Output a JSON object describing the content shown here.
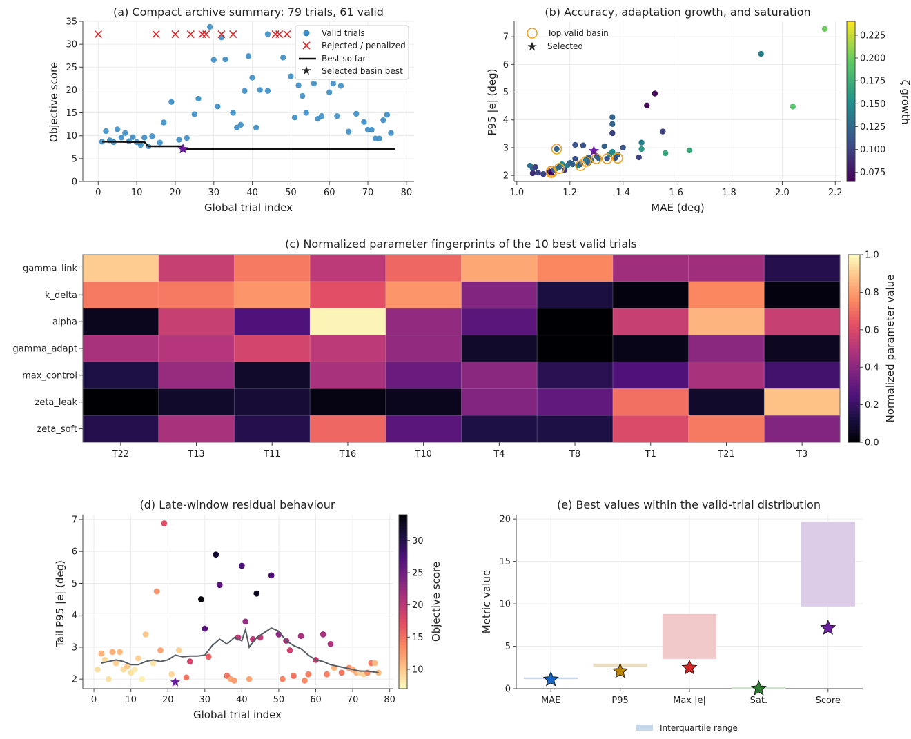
{
  "chart_data": [
    {
      "id": "a",
      "type": "scatter",
      "title": "(a) Compact archive summary: 79 trials, 61 valid",
      "xlabel": "Global trial index",
      "ylabel": "Objective score",
      "xlim": [
        -4,
        82
      ],
      "ylim": [
        0,
        35
      ],
      "xticks": [
        0,
        10,
        20,
        30,
        40,
        50,
        60,
        70,
        80
      ],
      "yticks": [
        0,
        5,
        10,
        15,
        20,
        25,
        30,
        35
      ],
      "grid": true,
      "legend_position": "top-right",
      "legend": [
        "Valid trials",
        "Rejected / penalized",
        "Best so far",
        "Selected basin best"
      ],
      "colors": {
        "valid": "#3a8cc4",
        "rejected": "#d62728",
        "best": "#111111",
        "selected": "#6a1fa0"
      },
      "valid_points": [
        [
          1,
          8.7
        ],
        [
          2,
          11
        ],
        [
          3,
          9
        ],
        [
          4,
          8.6
        ],
        [
          5,
          11.4
        ],
        [
          6,
          9.6
        ],
        [
          7,
          10.6
        ],
        [
          8,
          8.8
        ],
        [
          9,
          9.7
        ],
        [
          10,
          8.6
        ],
        [
          11,
          8
        ],
        [
          12,
          9.6
        ],
        [
          13,
          7.7
        ],
        [
          14,
          9.9
        ],
        [
          16,
          8.5
        ],
        [
          17,
          12.9
        ],
        [
          19,
          17.4
        ],
        [
          21,
          9.1
        ],
        [
          23,
          9.5
        ],
        [
          25,
          14.7
        ],
        [
          26,
          18.1
        ],
        [
          29,
          33.8
        ],
        [
          30,
          26.6
        ],
        [
          31,
          16.4
        ],
        [
          32,
          31.5
        ],
        [
          33,
          26.7
        ],
        [
          35,
          15
        ],
        [
          36,
          11.8
        ],
        [
          37,
          12.4
        ],
        [
          38,
          19.8
        ],
        [
          39,
          27.4
        ],
        [
          40,
          22.7
        ],
        [
          41,
          11.8
        ],
        [
          42,
          20
        ],
        [
          44,
          32.2
        ],
        [
          44,
          19.8
        ],
        [
          48,
          27.1
        ],
        [
          50,
          23
        ],
        [
          51,
          14
        ],
        [
          52,
          21
        ],
        [
          53,
          18.7
        ],
        [
          54,
          15
        ],
        [
          55,
          31.7
        ],
        [
          56,
          21.4
        ],
        [
          57,
          13.7
        ],
        [
          58,
          14.3
        ],
        [
          59,
          25
        ],
        [
          60,
          19.5
        ],
        [
          61,
          21.4
        ],
        [
          62,
          14.3
        ],
        [
          63,
          20.9
        ],
        [
          65,
          10.9
        ],
        [
          67,
          14.8
        ],
        [
          69,
          13
        ],
        [
          70,
          11.3
        ],
        [
          71,
          11.3
        ],
        [
          72,
          9.4
        ],
        [
          73,
          9.4
        ],
        [
          74,
          13.4
        ],
        [
          75,
          14.6
        ],
        [
          76,
          10.6
        ]
      ],
      "rejected_points": [
        [
          0,
          32.2
        ],
        [
          15,
          32.2
        ],
        [
          20,
          32.2
        ],
        [
          24,
          32.2
        ],
        [
          27,
          32.2
        ],
        [
          28,
          32.2
        ],
        [
          32,
          32.2
        ],
        [
          35,
          32.2
        ],
        [
          46,
          32.2
        ],
        [
          47,
          32.2
        ],
        [
          49,
          32.2
        ],
        [
          78,
          32.2
        ]
      ],
      "best_so_far": [
        [
          1,
          8.7
        ],
        [
          12,
          8.6
        ],
        [
          13,
          7.7
        ],
        [
          22,
          7.7
        ],
        [
          22,
          7.1
        ],
        [
          77,
          7.1
        ]
      ],
      "selected": [
        22,
        7.1
      ]
    },
    {
      "id": "b",
      "type": "scatter",
      "title": "(b) Accuracy, adaptation growth, and saturation",
      "xlabel": "MAE (deg)",
      "ylabel": "P95 |e| (deg)",
      "xlim": [
        0.99,
        2.22
      ],
      "ylim": [
        1.78,
        7.55
      ],
      "xticks": [
        1.0,
        1.2,
        1.4,
        1.6,
        1.8,
        2.0,
        2.2
      ],
      "yticks": [
        2,
        3,
        4,
        5,
        6,
        7
      ],
      "grid": true,
      "colorbar_label": "ζ growth",
      "colorbar_range": [
        0.065,
        0.24
      ],
      "colorbar_ticks": [
        0.075,
        0.1,
        0.125,
        0.15,
        0.175,
        0.2,
        0.225
      ],
      "legend_position": "top-left",
      "legend": [
        "Top valid basin",
        "Selected"
      ],
      "points": [
        [
          1.05,
          2.35,
          0.13
        ],
        [
          1.06,
          2.25,
          0.12
        ],
        [
          1.07,
          2.3,
          0.1
        ],
        [
          1.06,
          2.08,
          0.09
        ],
        [
          1.08,
          2.1,
          0.1
        ],
        [
          1.1,
          2.05,
          0.1
        ],
        [
          1.12,
          2.15,
          0.09
        ],
        [
          1.13,
          2.1,
          0.07
        ],
        [
          1.14,
          2.2,
          0.12
        ],
        [
          1.15,
          2.25,
          0.15
        ],
        [
          1.16,
          2.3,
          0.12
        ],
        [
          1.15,
          2.95,
          0.12
        ],
        [
          1.17,
          2.4,
          0.15
        ],
        [
          1.18,
          2.2,
          0.1
        ],
        [
          1.19,
          2.35,
          0.14
        ],
        [
          1.2,
          2.45,
          0.12
        ],
        [
          1.21,
          2.4,
          0.12
        ],
        [
          1.22,
          2.6,
          0.11
        ],
        [
          1.22,
          3.1,
          0.11
        ],
        [
          1.23,
          2.35,
          0.15
        ],
        [
          1.24,
          2.4,
          0.12
        ],
        [
          1.25,
          3.08,
          0.11
        ],
        [
          1.26,
          2.55,
          0.14
        ],
        [
          1.27,
          2.45,
          0.12
        ],
        [
          1.27,
          2.65,
          0.12
        ],
        [
          1.28,
          2.55,
          0.12
        ],
        [
          1.3,
          2.7,
          0.12
        ],
        [
          1.31,
          2.6,
          0.12
        ],
        [
          1.33,
          3.05,
          0.12
        ],
        [
          1.34,
          2.6,
          0.11
        ],
        [
          1.35,
          2.75,
          0.14
        ],
        [
          1.36,
          2.85,
          0.15
        ],
        [
          1.36,
          4.1,
          0.12
        ],
        [
          1.36,
          3.85,
          0.12
        ],
        [
          1.36,
          3.52,
          0.1
        ],
        [
          1.37,
          2.62,
          0.11
        ],
        [
          1.38,
          2.75,
          0.12
        ],
        [
          1.4,
          3.0,
          0.11
        ],
        [
          1.46,
          2.65,
          0.1
        ],
        [
          1.47,
          2.95,
          0.16
        ],
        [
          1.47,
          3.18,
          0.14
        ],
        [
          1.49,
          4.52,
          0.07
        ],
        [
          1.52,
          4.95,
          0.07
        ],
        [
          1.55,
          3.58,
          0.1
        ],
        [
          1.56,
          2.8,
          0.17
        ],
        [
          1.65,
          2.9,
          0.17
        ],
        [
          1.92,
          6.38,
          0.14
        ],
        [
          2.04,
          4.48,
          0.19
        ],
        [
          2.16,
          7.28,
          0.2
        ]
      ],
      "top_basin": [
        [
          1.13,
          2.15
        ],
        [
          1.13,
          2.1
        ],
        [
          1.15,
          2.95
        ],
        [
          1.16,
          2.25
        ],
        [
          1.24,
          2.35
        ],
        [
          1.26,
          2.5
        ],
        [
          1.3,
          2.6
        ],
        [
          1.34,
          2.6
        ],
        [
          1.38,
          2.62
        ]
      ],
      "selected": [
        1.29,
        2.88
      ]
    },
    {
      "id": "c",
      "type": "heatmap",
      "title": "(c) Normalized parameter fingerprints of the 10 best valid trials",
      "rows": [
        "gamma_link",
        "k_delta",
        "alpha",
        "gamma_adapt",
        "max_control",
        "zeta_leak",
        "zeta_soft"
      ],
      "columns": [
        "T22",
        "T13",
        "T11",
        "T16",
        "T10",
        "T4",
        "T8",
        "T1",
        "T21",
        "T3"
      ],
      "colorbar_label": "Normalized parameter value",
      "colorbar_range": [
        0,
        1
      ],
      "colorbar_ticks": [
        0.0,
        0.2,
        0.4,
        0.6,
        0.8,
        1.0
      ],
      "values": [
        [
          0.9,
          0.55,
          0.72,
          0.52,
          0.68,
          0.82,
          0.75,
          0.45,
          0.45,
          0.15
        ],
        [
          0.72,
          0.72,
          0.78,
          0.62,
          0.78,
          0.38,
          0.12,
          0.02,
          0.75,
          0.02
        ],
        [
          0.05,
          0.55,
          0.25,
          0.98,
          0.42,
          0.28,
          0.0,
          0.55,
          0.85,
          0.55
        ],
        [
          0.47,
          0.5,
          0.58,
          0.52,
          0.42,
          0.08,
          0.0,
          0.04,
          0.4,
          0.06
        ],
        [
          0.13,
          0.43,
          0.08,
          0.47,
          0.32,
          0.4,
          0.16,
          0.25,
          0.47,
          0.22
        ],
        [
          0.0,
          0.08,
          0.1,
          0.03,
          0.05,
          0.38,
          0.3,
          0.7,
          0.08,
          0.88
        ],
        [
          0.15,
          0.47,
          0.15,
          0.68,
          0.28,
          0.13,
          0.13,
          0.6,
          0.72,
          0.38
        ]
      ]
    },
    {
      "id": "d",
      "type": "scatter",
      "title": "(d) Late-window residual behaviour",
      "xlabel": "Global trial index",
      "ylabel": "Tail P95 |e| (deg)",
      "xlim": [
        -3,
        81
      ],
      "ylim": [
        1.7,
        7.15
      ],
      "xticks": [
        0,
        10,
        20,
        30,
        40,
        50,
        60,
        70,
        80
      ],
      "yticks": [
        2,
        3,
        4,
        5,
        6,
        7
      ],
      "grid": true,
      "colorbar_label": "Objective score",
      "colorbar_range": [
        7,
        34
      ],
      "colorbar_ticks": [
        10,
        15,
        20,
        25,
        30
      ],
      "points": [
        [
          1,
          2.3,
          8.7
        ],
        [
          2,
          2.8,
          11
        ],
        [
          3,
          2.6,
          9
        ],
        [
          4,
          2.0,
          8.6
        ],
        [
          5,
          2.85,
          11.4
        ],
        [
          6,
          2.5,
          9.6
        ],
        [
          7,
          2.85,
          10.6
        ],
        [
          8,
          2.3,
          8.8
        ],
        [
          9,
          2.4,
          9.7
        ],
        [
          10,
          2.2,
          8.6
        ],
        [
          11,
          2.3,
          8
        ],
        [
          12,
          2.65,
          9.6
        ],
        [
          13,
          2.0,
          7.7
        ],
        [
          14,
          3.4,
          9.9
        ],
        [
          16,
          2.5,
          8.5
        ],
        [
          17,
          4.75,
          12.9
        ],
        [
          18,
          2.9,
          12
        ],
        [
          19,
          6.88,
          17.4
        ],
        [
          21,
          2.15,
          9.1
        ],
        [
          23,
          2.9,
          9.5
        ],
        [
          25,
          2.05,
          14.7
        ],
        [
          26,
          2.55,
          18.1
        ],
        [
          29,
          4.5,
          33.8
        ],
        [
          30,
          3.58,
          26.6
        ],
        [
          31,
          2.7,
          16.4
        ],
        [
          33,
          5.9,
          31.5
        ],
        [
          34,
          4.95,
          26.7
        ],
        [
          36,
          2.1,
          15
        ],
        [
          37,
          2.0,
          11.8
        ],
        [
          38,
          1.95,
          12.4
        ],
        [
          39,
          3.3,
          19.8
        ],
        [
          40,
          5.55,
          27.4
        ],
        [
          41,
          3.8,
          22.7
        ],
        [
          42,
          2.0,
          11.8
        ],
        [
          43,
          3.25,
          20
        ],
        [
          44,
          4.68,
          32.2
        ],
        [
          45,
          3.3,
          19.8
        ],
        [
          48,
          5.25,
          27.1
        ],
        [
          50,
          3.4,
          23
        ],
        [
          51,
          2.0,
          14
        ],
        [
          52,
          3.2,
          21
        ],
        [
          53,
          2.9,
          18.7
        ],
        [
          54,
          2.1,
          15
        ],
        [
          56,
          3.35,
          21.4
        ],
        [
          57,
          1.95,
          13.7
        ],
        [
          58,
          2.15,
          14.3
        ],
        [
          60,
          2.6,
          19.5
        ],
        [
          62,
          3.4,
          21.4
        ],
        [
          63,
          2.15,
          14.3
        ],
        [
          64,
          3.1,
          20.9
        ],
        [
          65,
          2.35,
          10.9
        ],
        [
          67,
          2.2,
          14.8
        ],
        [
          69,
          2.35,
          13
        ],
        [
          70,
          2.3,
          11.3
        ],
        [
          71,
          2.2,
          11.3
        ],
        [
          72,
          2.2,
          9.4
        ],
        [
          73,
          2.15,
          9.4
        ],
        [
          74,
          2.2,
          13.4
        ],
        [
          75,
          2.5,
          14.6
        ],
        [
          76,
          2.5,
          10.6
        ],
        [
          77,
          2.2,
          10.6
        ]
      ],
      "rolling": [
        [
          2,
          2.5
        ],
        [
          4,
          2.55
        ],
        [
          6,
          2.6
        ],
        [
          8,
          2.55
        ],
        [
          10,
          2.45
        ],
        [
          12,
          2.45
        ],
        [
          14,
          2.55
        ],
        [
          16,
          2.6
        ],
        [
          18,
          2.55
        ],
        [
          20,
          2.6
        ],
        [
          22,
          2.75
        ],
        [
          24,
          2.7
        ],
        [
          26,
          2.72
        ],
        [
          28,
          2.72
        ],
        [
          30,
          2.75
        ],
        [
          32,
          3.05
        ],
        [
          34,
          3.25
        ],
        [
          36,
          3.1
        ],
        [
          38,
          3.3
        ],
        [
          40,
          3.2
        ],
        [
          41,
          3.55
        ],
        [
          42,
          3.0
        ],
        [
          44,
          3.3
        ],
        [
          46,
          3.45
        ],
        [
          48,
          3.6
        ],
        [
          50,
          3.5
        ],
        [
          52,
          3.2
        ],
        [
          54,
          3.05
        ],
        [
          56,
          2.95
        ],
        [
          58,
          2.75
        ],
        [
          60,
          2.6
        ],
        [
          62,
          2.55
        ],
        [
          64,
          2.45
        ],
        [
          66,
          2.4
        ],
        [
          68,
          2.35
        ],
        [
          70,
          2.3
        ],
        [
          72,
          2.25
        ],
        [
          74,
          2.25
        ],
        [
          76,
          2.22
        ],
        [
          77,
          2.2
        ]
      ],
      "selected": [
        22,
        1.9
      ]
    },
    {
      "id": "e",
      "type": "bar",
      "title": "(e) Best values within the valid-trial distribution",
      "ylabel": "Metric value",
      "ylim": [
        0,
        20.5
      ],
      "yticks": [
        0,
        5,
        10,
        15,
        20
      ],
      "grid": true,
      "categories": [
        "MAE",
        "P95",
        "Max |e|",
        "Sat.",
        "Score"
      ],
      "iqr_low": [
        1.12,
        2.55,
        3.5,
        0.0,
        9.7
      ],
      "iqr_high": [
        1.28,
        2.95,
        8.8,
        0.0,
        19.7
      ],
      "best": [
        1.08,
        2.05,
        2.45,
        0.0,
        7.15
      ],
      "colors": [
        "#1565c0",
        "#b8860b",
        "#d62728",
        "#2e7d32",
        "#6a1fa0"
      ],
      "iqr_colors": [
        "#c6d9ec",
        "#eadfc3",
        "#f1c9cb",
        "#cde3cd",
        "#dccce8"
      ],
      "legend": [
        "Interquartile range"
      ],
      "legend_position": "bottom"
    }
  ]
}
